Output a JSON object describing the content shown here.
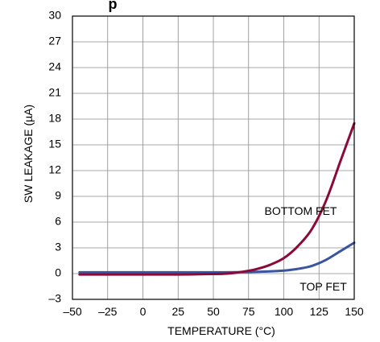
{
  "title_fragment": "p",
  "chart_data": {
    "type": "line",
    "xlabel": "TEMPERATURE (°C)",
    "ylabel": "SW LEAKAGE (µA)",
    "xlim": [
      -50,
      150
    ],
    "ylim": [
      -3,
      30
    ],
    "x_ticks": [
      -50,
      -25,
      0,
      25,
      50,
      75,
      100,
      125,
      150
    ],
    "x_tick_labels": [
      "–50",
      "–25",
      "0",
      "25",
      "50",
      "75",
      "100",
      "125",
      "150"
    ],
    "y_ticks": [
      -3,
      0,
      3,
      6,
      9,
      12,
      15,
      18,
      21,
      24,
      27,
      30
    ],
    "y_tick_labels": [
      "–3",
      "0",
      "3",
      "6",
      "9",
      "12",
      "15",
      "18",
      "21",
      "24",
      "27",
      "30"
    ],
    "grid": true,
    "series": [
      {
        "name": "BOTTOM FET",
        "color": "#8b0a3a",
        "x": [
          -45,
          -25,
          0,
          25,
          50,
          60,
          70,
          80,
          90,
          100,
          110,
          120,
          130,
          140,
          150
        ],
        "y": [
          -0.1,
          -0.1,
          -0.1,
          -0.1,
          -0.05,
          0.0,
          0.2,
          0.5,
          1.0,
          1.8,
          3.2,
          5.2,
          8.5,
          13.0,
          17.5
        ]
      },
      {
        "name": "TOP FET",
        "color": "#3a55a0",
        "x": [
          -45,
          -25,
          0,
          25,
          50,
          75,
          90,
          100,
          110,
          120,
          130,
          140,
          150
        ],
        "y": [
          0.15,
          0.15,
          0.15,
          0.15,
          0.15,
          0.18,
          0.25,
          0.35,
          0.55,
          0.9,
          1.6,
          2.6,
          3.6
        ]
      }
    ],
    "annotations": [
      {
        "text": "BOTTOM FET",
        "x": 112,
        "y": 7.2
      },
      {
        "text": "TOP FET",
        "x": 128,
        "y": -1.6
      }
    ]
  }
}
